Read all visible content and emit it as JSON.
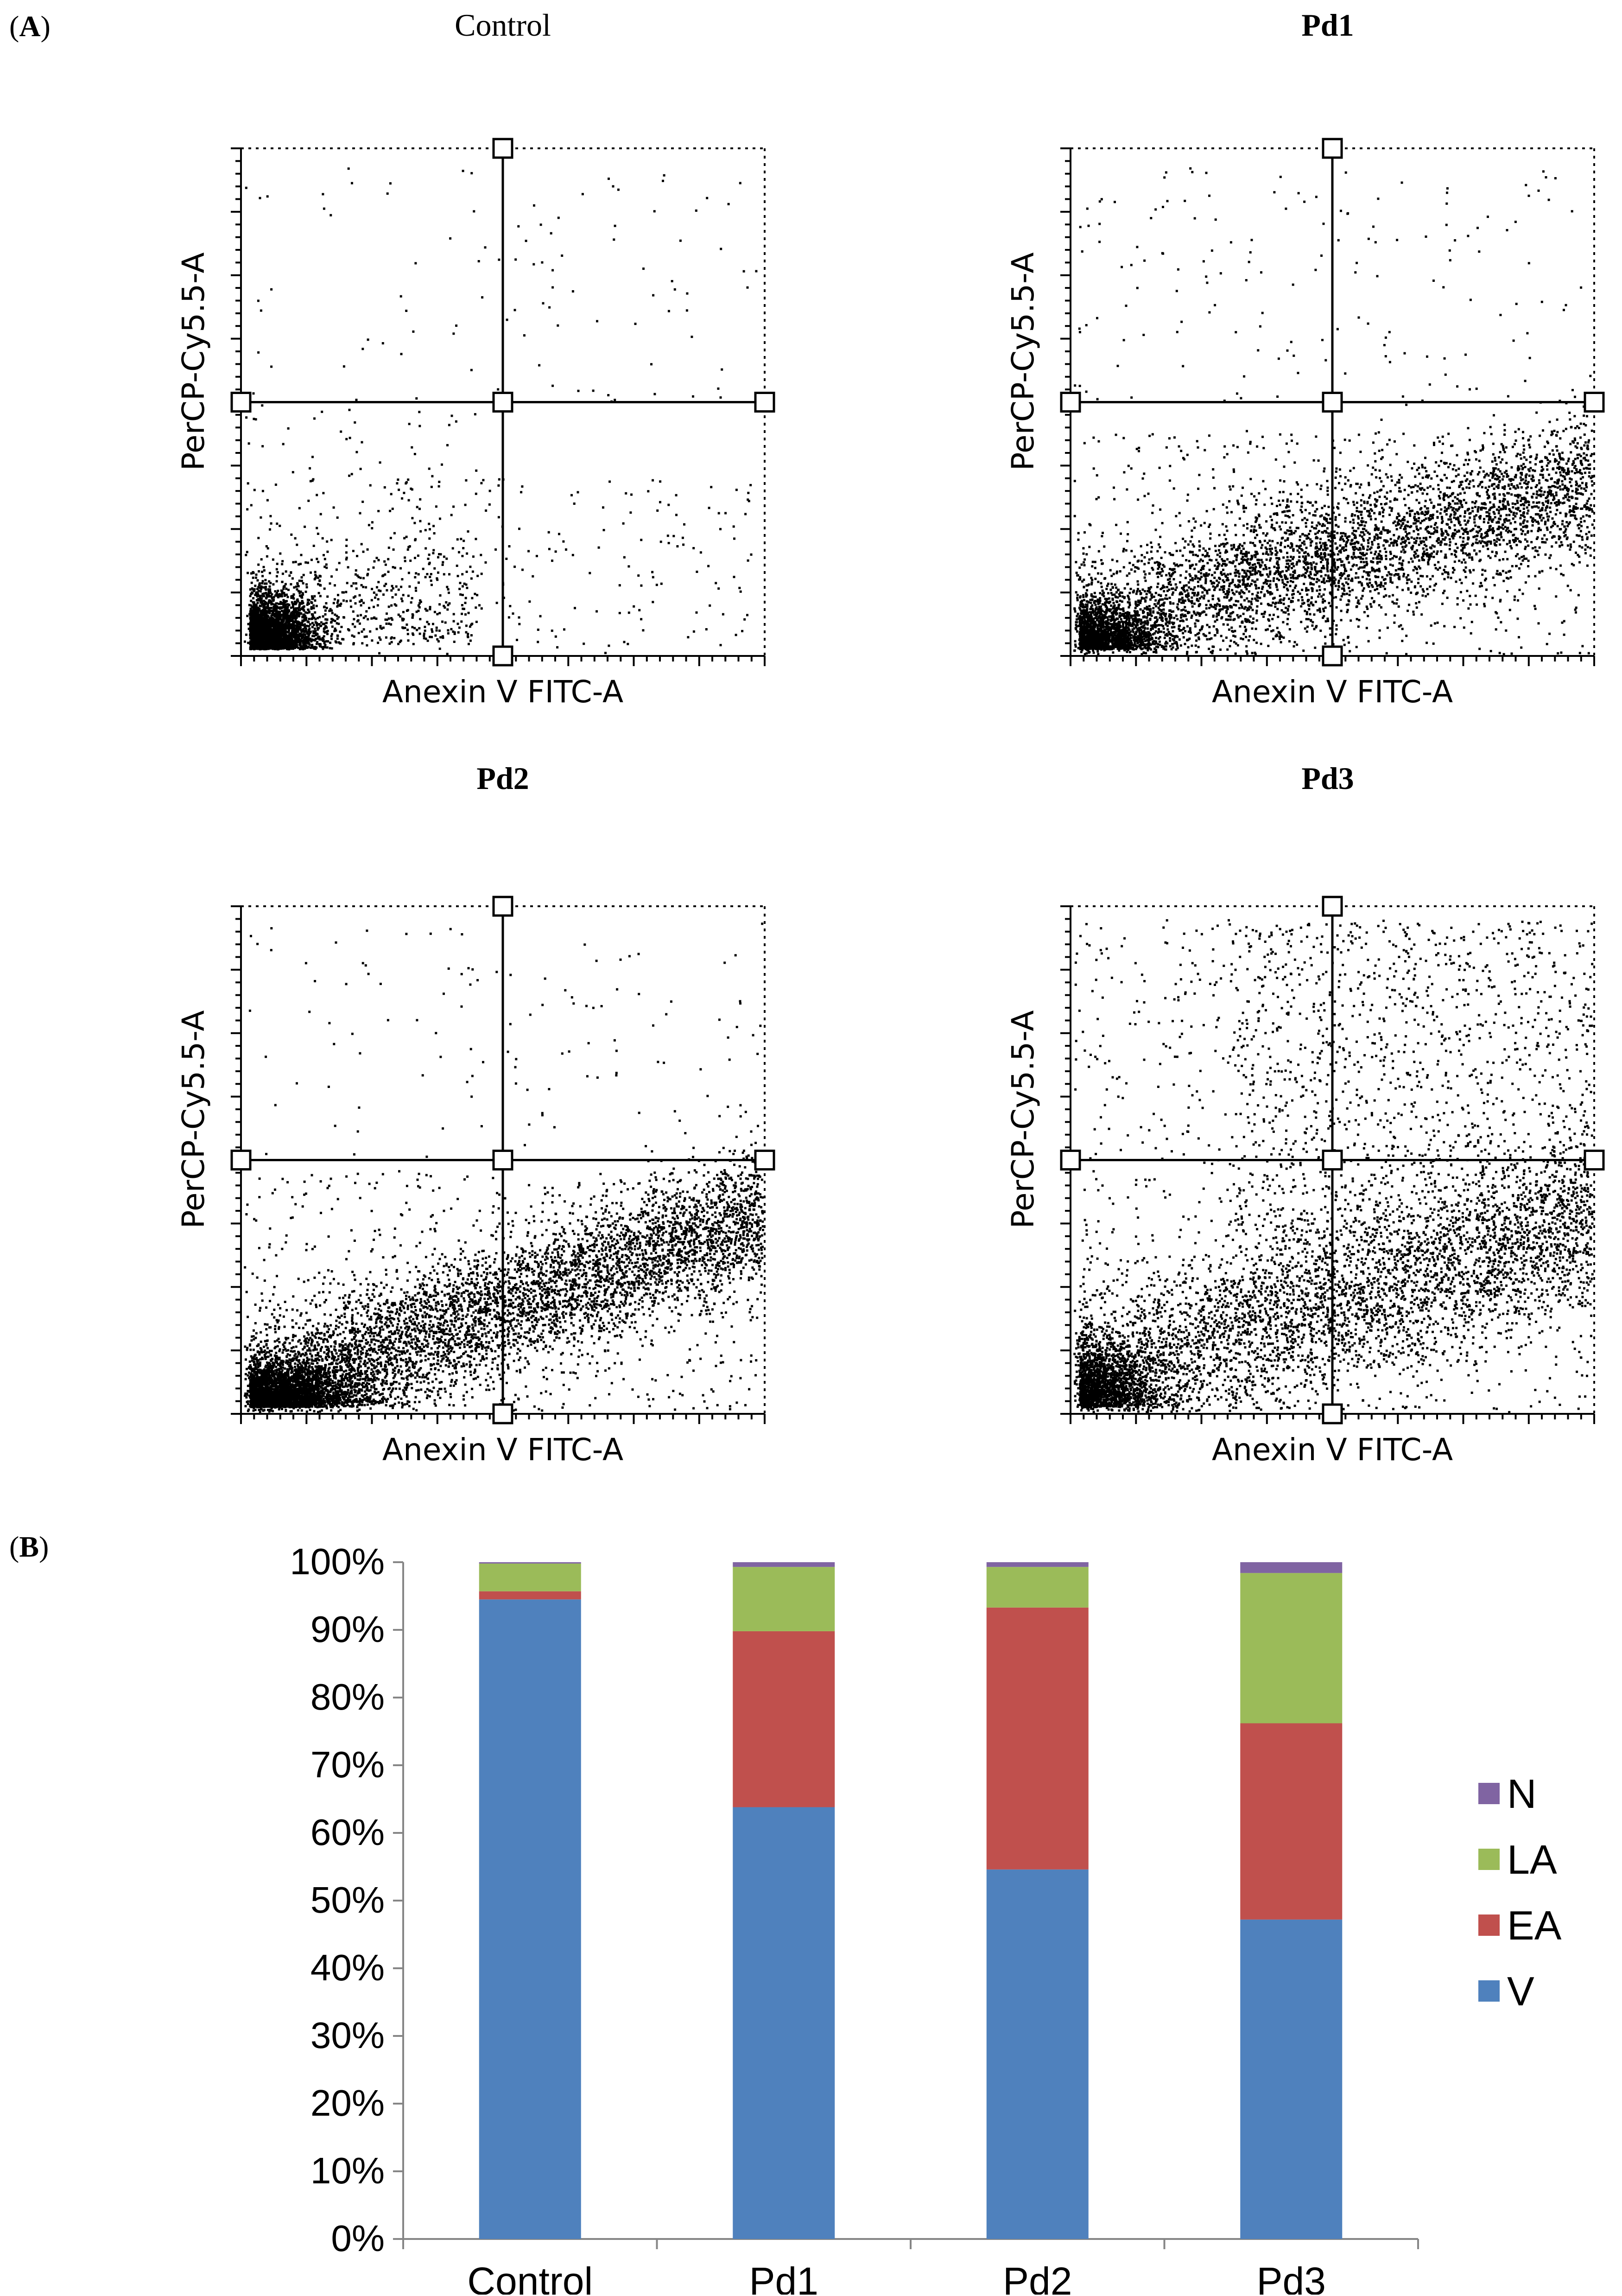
{
  "panel_a_label": "A",
  "panel_b_label": "B",
  "scatter_plots": [
    {
      "title": "Control",
      "title_bold": false,
      "xlabel": "Anexin V FITC-A",
      "ylabel": "PerCP-Cy5.5-A",
      "distribution": "control"
    },
    {
      "title": "Pd1",
      "title_bold": true,
      "xlabel": "Anexin V FITC-A",
      "ylabel": "PerCP-Cy5.5-A",
      "distribution": "pd1"
    },
    {
      "title": "Pd2",
      "title_bold": true,
      "xlabel": "Anexin V FITC-A",
      "ylabel": "PerCP-Cy5.5-A",
      "distribution": "pd2"
    },
    {
      "title": "Pd3",
      "title_bold": true,
      "xlabel": "Anexin V FITC-A",
      "ylabel": "PerCP-Cy5.5-A",
      "distribution": "pd3"
    }
  ],
  "chart_data": {
    "type": "bar",
    "stacked": true,
    "categories": [
      "Control",
      "Pd1",
      "Pd2",
      "Pd3"
    ],
    "series": [
      {
        "name": "V",
        "color": "#4F81BD",
        "values": [
          94.5,
          63.8,
          54.6,
          47.2
        ]
      },
      {
        "name": "EA",
        "color": "#C0504D",
        "values": [
          1.2,
          26.0,
          38.7,
          29.0
        ]
      },
      {
        "name": "LA",
        "color": "#9BBB59",
        "values": [
          4.1,
          9.5,
          6.0,
          22.2
        ]
      },
      {
        "name": "N",
        "color": "#8064A2",
        "values": [
          0.2,
          0.7,
          0.7,
          1.6
        ]
      }
    ],
    "ylim": [
      0,
      100
    ],
    "yticks": [
      "0%",
      "10%",
      "20%",
      "30%",
      "40%",
      "50%",
      "60%",
      "70%",
      "80%",
      "90%",
      "100%"
    ],
    "legend_order": [
      "N",
      "LA",
      "EA",
      "V"
    ],
    "legend_position": "right"
  }
}
